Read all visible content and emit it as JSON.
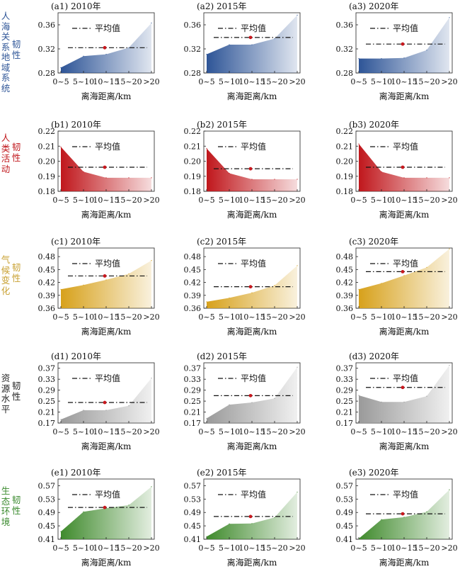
{
  "legend_label": "平均值",
  "x_axis_label": "离海距离/km",
  "rows": [
    {
      "category": "人海关系地域系统",
      "resilience": "韧性",
      "color": "#2e5597",
      "label_color": "#2e5597"
    },
    {
      "category": "人类活动",
      "resilience": "韧性",
      "color": "#c0171c",
      "label_color": "#c0171c"
    },
    {
      "category": "气候变化",
      "resilience": "韧性",
      "color": "#d7a11b",
      "label_color": "#c8a030"
    },
    {
      "category": "资源水平",
      "resilience": "韧性",
      "color": "#9a9a9a",
      "label_color": "#222222"
    },
    {
      "category": "生态环境",
      "resilience": "韧性",
      "color": "#3f8a2c",
      "label_color": "#3a8a2e"
    }
  ],
  "chart_data": [
    {
      "id": "a1",
      "title": "(a1) 2010年",
      "type": "area",
      "categories": [
        "0~5",
        "5~10",
        "10~15",
        "15~20",
        ">20"
      ],
      "values": [
        0.289,
        0.308,
        0.311,
        0.322,
        0.363
      ],
      "mean": 0.322,
      "ylim": [
        0.28,
        0.38
      ],
      "yticks": [
        "0.28",
        "0.32",
        "0.36"
      ],
      "xlabel": "离海距离/km",
      "legend": "平均值"
    },
    {
      "id": "a2",
      "title": "(a2) 2015年",
      "type": "area",
      "categories": [
        "0~5",
        "5~10",
        "10~15",
        "15~20",
        ">20"
      ],
      "values": [
        0.311,
        0.327,
        0.327,
        0.337,
        0.376
      ],
      "mean": 0.339,
      "ylim": [
        0.28,
        0.38
      ],
      "yticks": [
        "0.28",
        "0.32",
        "0.36"
      ],
      "xlabel": "离海距离/km",
      "legend": "平均值"
    },
    {
      "id": "a3",
      "title": "(a3) 2020年",
      "type": "area",
      "categories": [
        "0~5",
        "5~10",
        "10~15",
        "15~20",
        ">20"
      ],
      "values": [
        0.304,
        0.304,
        0.305,
        0.318,
        0.372
      ],
      "mean": 0.328,
      "ylim": [
        0.28,
        0.38
      ],
      "yticks": [
        "0.28",
        "0.32",
        "0.36"
      ],
      "xlabel": "离海距离/km",
      "legend": "平均值"
    },
    {
      "id": "b1",
      "title": "(b1) 2010年",
      "type": "area",
      "categories": [
        "0~5",
        "5~10",
        "10~15",
        "15~20",
        ">20"
      ],
      "values": [
        0.2095,
        0.193,
        0.189,
        0.189,
        0.189
      ],
      "mean": 0.196,
      "ylim": [
        0.18,
        0.22
      ],
      "yticks": [
        "0.18",
        "0.19",
        "0.20",
        "0.21",
        "0.22"
      ],
      "xlabel": "离海距离/km",
      "legend": "平均值"
    },
    {
      "id": "b2",
      "title": "(b2) 2015年",
      "type": "area",
      "categories": [
        "0~5",
        "5~10",
        "10~15",
        "15~20",
        ">20"
      ],
      "values": [
        0.2085,
        0.192,
        0.188,
        0.188,
        0.188
      ],
      "mean": 0.195,
      "ylim": [
        0.18,
        0.22
      ],
      "yticks": [
        "0.18",
        "0.19",
        "0.20",
        "0.21",
        "0.22"
      ],
      "xlabel": "离海距离/km",
      "legend": "平均值"
    },
    {
      "id": "b3",
      "title": "(b3) 2020年",
      "type": "area",
      "categories": [
        "0~5",
        "5~10",
        "10~15",
        "15~20",
        ">20"
      ],
      "values": [
        0.2115,
        0.193,
        0.189,
        0.189,
        0.189
      ],
      "mean": 0.196,
      "ylim": [
        0.18,
        0.22
      ],
      "yticks": [
        "0.18",
        "0.19",
        "0.20",
        "0.21",
        "0.22"
      ],
      "xlabel": "离海距离/km",
      "legend": "平均值"
    },
    {
      "id": "c1",
      "title": "(c1) 2010年",
      "type": "area",
      "categories": [
        "0~5",
        "5~10",
        "10~15",
        "15~20",
        ">20"
      ],
      "values": [
        0.404,
        0.414,
        0.426,
        0.44,
        0.471
      ],
      "mean": 0.435,
      "ylim": [
        0.36,
        0.5
      ],
      "yticks": [
        "0.36",
        "0.39",
        "0.42",
        "0.45",
        "0.48"
      ],
      "xlabel": "离海距离/km",
      "legend": "平均值"
    },
    {
      "id": "c2",
      "title": "(c2) 2015年",
      "type": "area",
      "categories": [
        "0~5",
        "5~10",
        "10~15",
        "15~20",
        ">20"
      ],
      "values": [
        0.375,
        0.384,
        0.396,
        0.413,
        0.459
      ],
      "mean": 0.41,
      "ylim": [
        0.36,
        0.5
      ],
      "yticks": [
        "0.36",
        "0.39",
        "0.42",
        "0.45",
        "0.48"
      ],
      "xlabel": "离海距离/km",
      "legend": "平均值"
    },
    {
      "id": "c3",
      "title": "(c3) 2020年",
      "type": "area",
      "categories": [
        "0~5",
        "5~10",
        "10~15",
        "15~20",
        ">20"
      ],
      "values": [
        0.404,
        0.418,
        0.436,
        0.455,
        0.498
      ],
      "mean": 0.445,
      "ylim": [
        0.36,
        0.5
      ],
      "yticks": [
        "0.36",
        "0.39",
        "0.42",
        "0.45",
        "0.48"
      ],
      "xlabel": "离海距离/km",
      "legend": "平均值"
    },
    {
      "id": "d1",
      "title": "(d1) 2010年",
      "type": "area",
      "categories": [
        "0~5",
        "5~10",
        "10~15",
        "15~20",
        ">20"
      ],
      "values": [
        0.183,
        0.217,
        0.217,
        0.233,
        0.334
      ],
      "mean": 0.245,
      "ylim": [
        0.17,
        0.39
      ],
      "yticks": [
        "0.17",
        "0.21",
        "0.25",
        "0.29",
        "0.33",
        "0.37"
      ],
      "xlabel": "离海距离/km",
      "legend": "平均值"
    },
    {
      "id": "d2",
      "title": "(d2) 2015年",
      "type": "area",
      "categories": [
        "0~5",
        "5~10",
        "10~15",
        "15~20",
        ">20"
      ],
      "values": [
        0.187,
        0.237,
        0.245,
        0.26,
        0.374
      ],
      "mean": 0.27,
      "ylim": [
        0.17,
        0.39
      ],
      "yticks": [
        "0.17",
        "0.21",
        "0.25",
        "0.29",
        "0.33",
        "0.37"
      ],
      "xlabel": "离海距离/km",
      "legend": "平均值"
    },
    {
      "id": "d3",
      "title": "(d3) 2020年",
      "type": "area",
      "categories": [
        "0~5",
        "5~10",
        "10~15",
        "15~20",
        ">20"
      ],
      "values": [
        0.271,
        0.247,
        0.247,
        0.268,
        0.381
      ],
      "mean": 0.3,
      "ylim": [
        0.17,
        0.39
      ],
      "yticks": [
        "0.17",
        "0.21",
        "0.25",
        "0.29",
        "0.33",
        "0.37"
      ],
      "xlabel": "离海距离/km",
      "legend": "平均值"
    },
    {
      "id": "e1",
      "title": "(e1) 2010年",
      "type": "area",
      "categories": [
        "0~5",
        "5~10",
        "10~15",
        "15~20",
        ">20"
      ],
      "values": [
        0.433,
        0.492,
        0.503,
        0.512,
        0.567
      ],
      "mean": 0.505,
      "ylim": [
        0.41,
        0.59
      ],
      "yticks": [
        "0.41",
        "0.45",
        "0.49",
        "0.53",
        "0.57"
      ],
      "xlabel": "离海距离/km",
      "legend": "平均值"
    },
    {
      "id": "e2",
      "title": "(e2) 2015年",
      "type": "area",
      "categories": [
        "0~5",
        "5~10",
        "10~15",
        "15~20",
        ">20"
      ],
      "values": [
        0.418,
        0.456,
        0.457,
        0.475,
        0.551
      ],
      "mean": 0.478,
      "ylim": [
        0.41,
        0.59
      ],
      "yticks": [
        "0.41",
        "0.45",
        "0.49",
        "0.53",
        "0.57"
      ],
      "xlabel": "离海距离/km",
      "legend": "平均值"
    },
    {
      "id": "e3",
      "title": "(e3) 2020年",
      "type": "area",
      "categories": [
        "0~5",
        "5~10",
        "10~15",
        "15~20",
        ">20"
      ],
      "values": [
        0.412,
        0.469,
        0.476,
        0.492,
        0.558
      ],
      "mean": 0.486,
      "ylim": [
        0.41,
        0.59
      ],
      "yticks": [
        "0.41",
        "0.45",
        "0.49",
        "0.53",
        "0.57"
      ],
      "xlabel": "离海距离/km",
      "legend": "平均值"
    }
  ]
}
